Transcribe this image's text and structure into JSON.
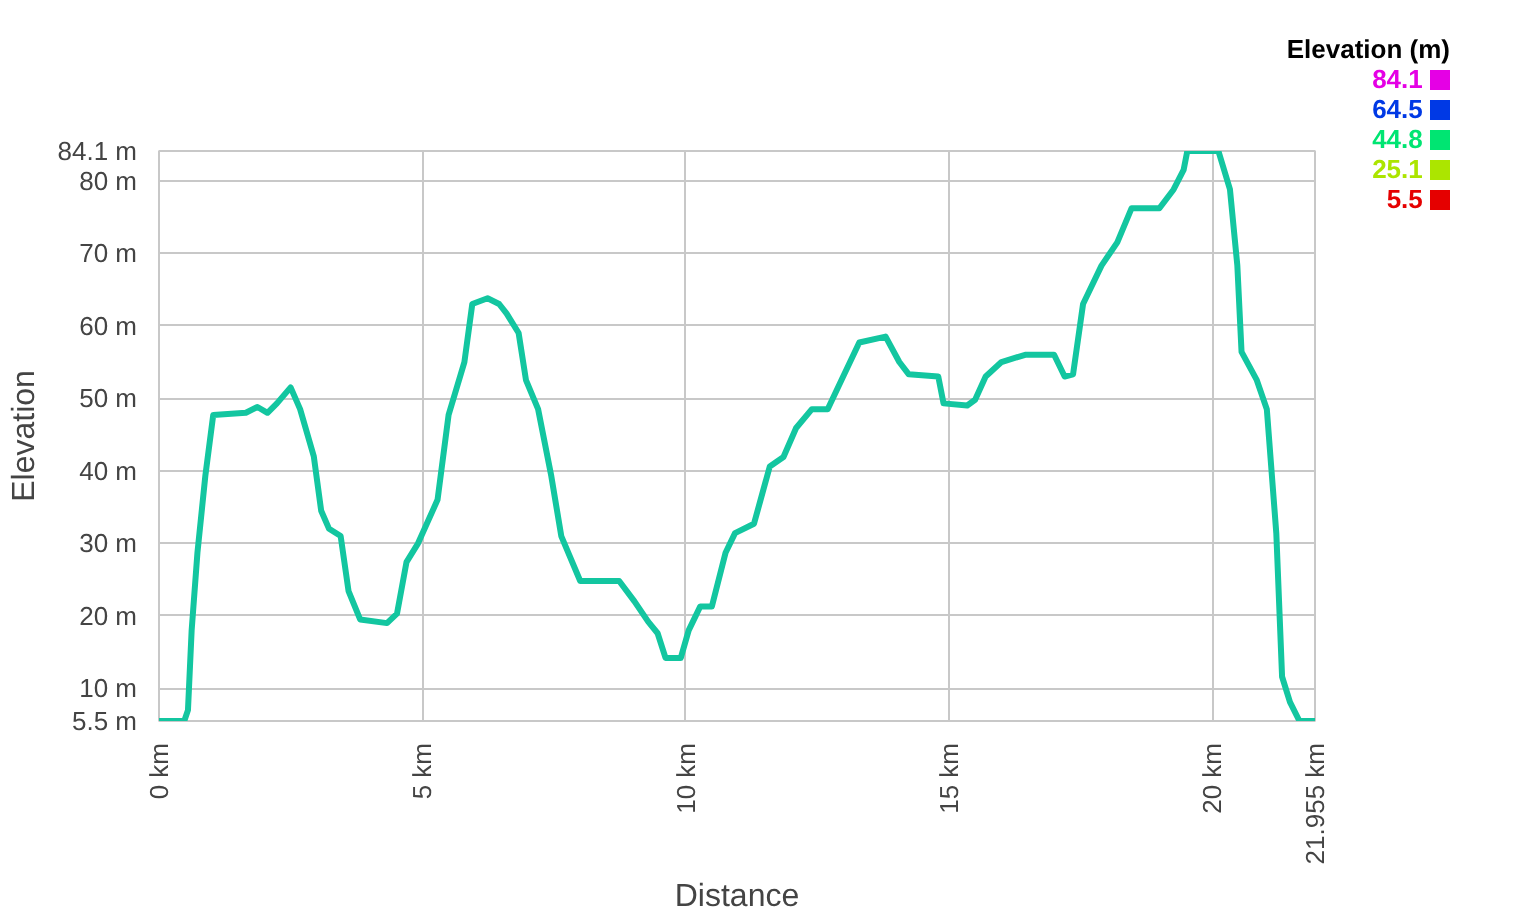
{
  "chart_data": {
    "type": "line",
    "xlabel": "Distance",
    "ylabel": "Elevation",
    "legend_title": "Elevation (m)",
    "annotations": [
      "84.1",
      "64.5",
      "44.8",
      "25.1",
      "5.5"
    ],
    "x": [
      0,
      0.48,
      0.55,
      0.62,
      0.73,
      0.88,
      1.03,
      1.65,
      1.87,
      2.06,
      2.24,
      2.5,
      2.68,
      2.94,
      3.08,
      3.23,
      3.45,
      3.6,
      3.82,
      4.33,
      4.52,
      4.7,
      4.92,
      5.29,
      5.5,
      5.8,
      5.95,
      6.24,
      6.46,
      6.6,
      6.83,
      6.97,
      7.2,
      7.45,
      7.64,
      8.0,
      8.74,
      9.03,
      9.29,
      9.47,
      9.62,
      9.91,
      10.06,
      10.28,
      10.5,
      10.76,
      10.94,
      11.3,
      11.6,
      11.86,
      12.1,
      12.4,
      12.7,
      12.96,
      13.3,
      13.8,
      14.06,
      14.24,
      14.8,
      14.9,
      15.35,
      15.5,
      15.7,
      16.0,
      16.45,
      17.0,
      17.2,
      17.36,
      17.55,
      17.9,
      18.2,
      18.47,
      19.0,
      19.27,
      19.46,
      19.53,
      20.12,
      20.34,
      20.48,
      20.56,
      20.85,
      21.04,
      21.22,
      21.33,
      21.48,
      21.66,
      21.955
    ],
    "series": [
      {
        "color": "#13c6a0",
        "values": [
          5.5,
          5.5,
          7,
          18,
          28.7,
          39.3,
          47.7,
          48,
          48.8,
          48,
          49.3,
          51.5,
          48.5,
          42,
          34.5,
          32,
          31,
          23.4,
          19.5,
          19,
          20.3,
          27.4,
          30,
          36,
          47.7,
          55,
          63,
          63.8,
          63,
          61.7,
          59,
          52.5,
          48.5,
          39.3,
          31,
          24.8,
          24.8,
          22,
          19.2,
          17.6,
          14.2,
          14.2,
          18,
          21.3,
          21.3,
          28.7,
          31.4,
          32.7,
          40.6,
          41.9,
          45.9,
          48.5,
          48.5,
          52.5,
          57.7,
          58.5,
          55,
          53.3,
          53,
          49.3,
          49,
          49.8,
          53,
          55,
          56,
          56,
          53,
          53.3,
          63,
          68.3,
          71.5,
          76.2,
          76.2,
          78.8,
          81.5,
          84.1,
          84.1,
          78.8,
          68.3,
          56.4,
          52.5,
          48.5,
          31.4,
          11.6,
          8.1,
          5.5,
          5.5
        ]
      }
    ],
    "xlim": [
      0,
      21.955
    ],
    "xticks": [
      {
        "value": 0,
        "label": "0 km"
      },
      {
        "value": 5,
        "label": "5 km"
      },
      {
        "value": 10,
        "label": "10 km"
      },
      {
        "value": 15,
        "label": "15 km"
      },
      {
        "value": 20,
        "label": "20 km"
      },
      {
        "value": 21.955,
        "label": "21.955 km"
      }
    ],
    "ylim": [
      5.5,
      84.1
    ],
    "yticks": [
      {
        "value": 5.5,
        "label": "5.5 m"
      },
      {
        "value": 10,
        "label": "10 m"
      },
      {
        "value": 20,
        "label": "20 m"
      },
      {
        "value": 30,
        "label": "30 m"
      },
      {
        "value": 40,
        "label": "40 m"
      },
      {
        "value": 50,
        "label": "50 m"
      },
      {
        "value": 60,
        "label": "60 m"
      },
      {
        "value": 70,
        "label": "70 m"
      },
      {
        "value": 80,
        "label": "80 m"
      },
      {
        "value": 84.1,
        "label": "84.1 m"
      }
    ],
    "grid": true,
    "line_style": "solid"
  }
}
